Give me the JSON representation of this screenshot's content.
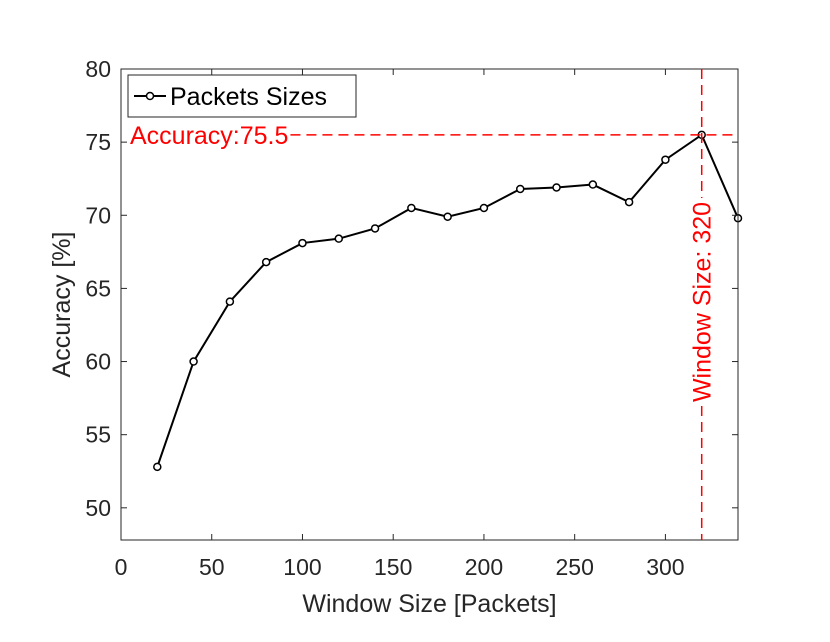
{
  "chart_data": {
    "type": "line",
    "xlabel": "Window Size [Packets]",
    "ylabel": "Accuracy [%]",
    "xlim": [
      0,
      340
    ],
    "ylim": [
      47.8,
      80
    ],
    "xticks": [
      0,
      50,
      100,
      150,
      200,
      250,
      300
    ],
    "yticks": [
      50,
      55,
      60,
      65,
      70,
      75,
      80
    ],
    "grid": false,
    "legend_position": "top-left",
    "series": [
      {
        "name": "Packets Sizes",
        "color": "#000000",
        "marker": "circle",
        "x": [
          20,
          40,
          60,
          80,
          100,
          120,
          140,
          160,
          180,
          200,
          220,
          240,
          260,
          280,
          300,
          320,
          340
        ],
        "y": [
          52.8,
          60.0,
          64.1,
          66.8,
          68.1,
          68.4,
          69.1,
          70.5,
          69.9,
          70.5,
          71.8,
          71.9,
          72.1,
          70.9,
          73.8,
          75.5,
          69.8
        ]
      }
    ],
    "annotations": [
      {
        "kind": "hline",
        "y": 75.5,
        "label": "Accuracy:75.5",
        "color": "#ff0000",
        "style": "dashed"
      },
      {
        "kind": "vline",
        "x": 320,
        "label": "Window Size: 320",
        "color": "#ff0000",
        "style": "dashed"
      }
    ]
  }
}
